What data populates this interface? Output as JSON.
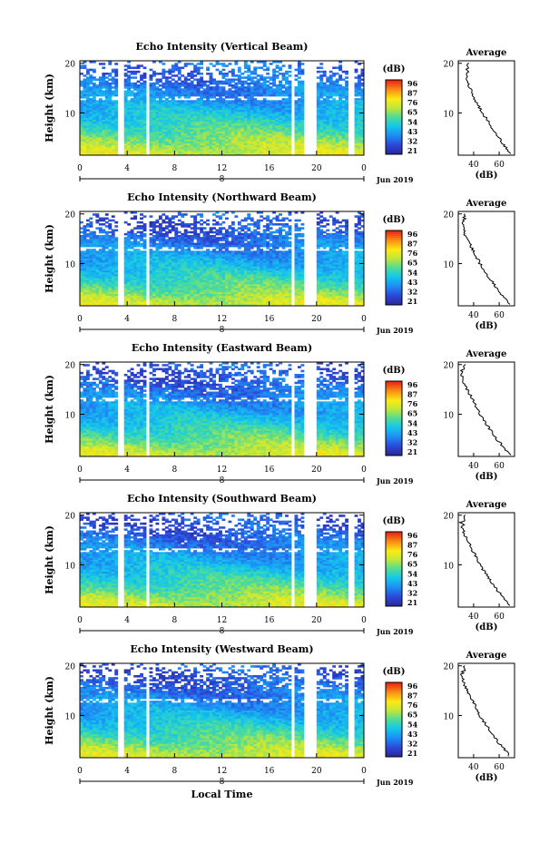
{
  "figure": {
    "xlabel_bottom": "Local Time",
    "colorbar_unit": "(dB)",
    "colorbar_ticks": [
      "96",
      "87",
      "76",
      "65",
      "54",
      "43",
      "32",
      "21"
    ],
    "avg_title": "Average",
    "avg_xlabel": "(dB)",
    "date_label": "Jun 2019",
    "day_label": "8",
    "x_ticks": [
      "0",
      "4",
      "8",
      "12",
      "16",
      "20",
      "0"
    ],
    "y_ticks": [
      "20",
      "10"
    ],
    "avg_x_ticks": [
      "40",
      "60"
    ],
    "ylabel": "Height (km)"
  },
  "chart_data": [
    {
      "type": "heatmap",
      "title": "Echo Intensity (Vertical Beam)",
      "xlabel": "",
      "ylabel": "Height (km)",
      "xlim": [
        0,
        24
      ],
      "ylim": [
        1.5,
        20.5
      ],
      "zlim": [
        21,
        96
      ],
      "colorbar_label": "(dB)",
      "data_gaps_hours": [
        [
          3.3,
          3.6
        ],
        [
          5.6,
          5.9
        ],
        [
          17.9,
          18.2
        ],
        [
          19.0,
          20.1
        ],
        [
          22.6,
          23.1
        ]
      ],
      "average_profile": {
        "title": "Average",
        "xlabel": "(dB)",
        "xlim": [
          28,
          72
        ],
        "heights_km": [
          2,
          5,
          8,
          10,
          13,
          16,
          18,
          20
        ],
        "values_db": [
          68,
          60,
          52,
          47,
          40,
          36,
          34,
          36
        ]
      }
    },
    {
      "type": "heatmap",
      "title": "Echo Intensity (Northward Beam)",
      "xlabel": "",
      "ylabel": "Height (km)",
      "xlim": [
        0,
        24
      ],
      "ylim": [
        1.5,
        20.5
      ],
      "zlim": [
        21,
        96
      ],
      "colorbar_label": "(dB)",
      "data_gaps_hours": [
        [
          3.3,
          3.6
        ],
        [
          5.6,
          5.9
        ],
        [
          17.9,
          18.2
        ],
        [
          19.0,
          20.1
        ],
        [
          22.6,
          23.1
        ]
      ],
      "average_profile": {
        "title": "Average",
        "xlabel": "(dB)",
        "xlim": [
          28,
          72
        ],
        "heights_km": [
          2,
          5,
          8,
          10,
          13,
          16,
          18,
          20
        ],
        "values_db": [
          68,
          58,
          50,
          45,
          39,
          33,
          31,
          33
        ]
      }
    },
    {
      "type": "heatmap",
      "title": "Echo Intensity (Eastward Beam)",
      "xlabel": "",
      "ylabel": "Height (km)",
      "xlim": [
        0,
        24
      ],
      "ylim": [
        1.5,
        20.5
      ],
      "zlim": [
        21,
        96
      ],
      "colorbar_label": "(dB)",
      "data_gaps_hours": [
        [
          3.3,
          3.6
        ],
        [
          5.6,
          5.9
        ],
        [
          17.9,
          18.2
        ],
        [
          19.0,
          20.1
        ],
        [
          22.6,
          23.1
        ]
      ],
      "average_profile": {
        "title": "Average",
        "xlabel": "(dB)",
        "xlim": [
          28,
          72
        ],
        "heights_km": [
          2,
          5,
          8,
          10,
          13,
          16,
          18,
          20
        ],
        "values_db": [
          68,
          58,
          50,
          45,
          39,
          33,
          31,
          33
        ]
      }
    },
    {
      "type": "heatmap",
      "title": "Echo Intensity (Southward Beam)",
      "xlabel": "",
      "ylabel": "Height (km)",
      "xlim": [
        0,
        24
      ],
      "ylim": [
        1.5,
        20.5
      ],
      "zlim": [
        21,
        96
      ],
      "colorbar_label": "(dB)",
      "data_gaps_hours": [
        [
          3.3,
          3.6
        ],
        [
          5.6,
          5.9
        ],
        [
          17.9,
          18.2
        ],
        [
          19.0,
          20.1
        ],
        [
          22.6,
          23.1
        ]
      ],
      "average_profile": {
        "title": "Average",
        "xlabel": "(dB)",
        "xlim": [
          28,
          72
        ],
        "heights_km": [
          2,
          5,
          8,
          10,
          13,
          16,
          18,
          20
        ],
        "values_db": [
          68,
          58,
          50,
          45,
          39,
          33,
          31,
          33
        ]
      }
    },
    {
      "type": "heatmap",
      "title": "Echo Intensity (Westward Beam)",
      "xlabel": "Local Time",
      "ylabel": "Height (km)",
      "xlim": [
        0,
        24
      ],
      "ylim": [
        1.5,
        20.5
      ],
      "zlim": [
        21,
        96
      ],
      "colorbar_label": "(dB)",
      "data_gaps_hours": [
        [
          3.3,
          3.6
        ],
        [
          5.6,
          5.9
        ],
        [
          17.9,
          18.2
        ],
        [
          19.0,
          20.1
        ],
        [
          22.6,
          23.1
        ]
      ],
      "average_profile": {
        "title": "Average",
        "xlabel": "(dB)",
        "xlim": [
          28,
          72
        ],
        "heights_km": [
          2,
          5,
          8,
          10,
          13,
          16,
          18,
          20
        ],
        "values_db": [
          68,
          58,
          50,
          45,
          39,
          33,
          31,
          33
        ]
      }
    }
  ]
}
